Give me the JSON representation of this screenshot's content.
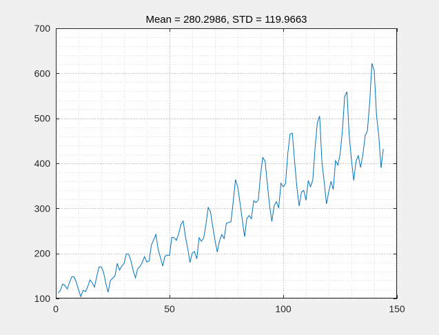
{
  "figure": {
    "background": "#f0f0f0"
  },
  "chart_data": {
    "type": "line",
    "title": "Mean = 280.2986, STD = 119.9663",
    "xlabel": "",
    "ylabel": "",
    "xlim": [
      0,
      150
    ],
    "ylim": [
      100,
      700
    ],
    "xticks": [
      0,
      50,
      100,
      150
    ],
    "yticks": [
      100,
      200,
      300,
      400,
      500,
      600,
      700
    ],
    "grid": "major and minor, dotted",
    "line_color": "#0072bd",
    "series": [
      {
        "x": [
          1,
          2,
          3,
          4,
          5,
          6,
          7,
          8,
          9,
          10,
          11,
          12,
          13,
          14,
          15,
          16,
          17,
          18,
          19,
          20,
          21,
          22,
          23,
          24,
          25,
          26,
          27,
          28,
          29,
          30,
          31,
          32,
          33,
          34,
          35,
          36,
          37,
          38,
          39,
          40,
          41,
          42,
          43,
          44,
          45,
          46,
          47,
          48,
          49,
          50,
          51,
          52,
          53,
          54,
          55,
          56,
          57,
          58,
          59,
          60,
          61,
          62,
          63,
          64,
          65,
          66,
          67,
          68,
          69,
          70,
          71,
          72,
          73,
          74,
          75,
          76,
          77,
          78,
          79,
          80,
          81,
          82,
          83,
          84,
          85,
          86,
          87,
          88,
          89,
          90,
          91,
          92,
          93,
          94,
          95,
          96,
          97,
          98,
          99,
          100,
          101,
          102,
          103,
          104,
          105,
          106,
          107,
          108,
          109,
          110,
          111,
          112,
          113,
          114,
          115,
          116,
          117,
          118,
          119,
          120,
          121,
          122,
          123,
          124,
          125,
          126,
          127,
          128,
          129,
          130,
          131,
          132,
          133,
          134,
          135,
          136,
          137,
          138,
          139,
          140,
          141,
          142,
          143,
          144
        ],
        "values": [
          112,
          118,
          132,
          129,
          121,
          135,
          148,
          148,
          136,
          119,
          104,
          118,
          115,
          126,
          141,
          135,
          125,
          149,
          170,
          170,
          158,
          133,
          114,
          140,
          145,
          150,
          178,
          163,
          172,
          178,
          199,
          199,
          184,
          162,
          146,
          166,
          171,
          180,
          193,
          181,
          183,
          218,
          230,
          242,
          209,
          191,
          172,
          194,
          196,
          196,
          236,
          235,
          229,
          243,
          264,
          272,
          237,
          211,
          180,
          201,
          204,
          188,
          235,
          227,
          234,
          264,
          302,
          293,
          259,
          229,
          203,
          229,
          242,
          233,
          267,
          269,
          270,
          315,
          364,
          347,
          312,
          274,
          237,
          278,
          284,
          277,
          317,
          313,
          318,
          374,
          413,
          405,
          355,
          306,
          271,
          306,
          315,
          301,
          356,
          348,
          355,
          422,
          465,
          467,
          404,
          347,
          305,
          336,
          340,
          318,
          362,
          348,
          363,
          435,
          491,
          505,
          404,
          359,
          310,
          337,
          360,
          342,
          406,
          396,
          420,
          472,
          548,
          559,
          463,
          407,
          362,
          405,
          417,
          391,
          419,
          461,
          472,
          535,
          622,
          606,
          508,
          461,
          390,
          432
        ]
      }
    ]
  }
}
